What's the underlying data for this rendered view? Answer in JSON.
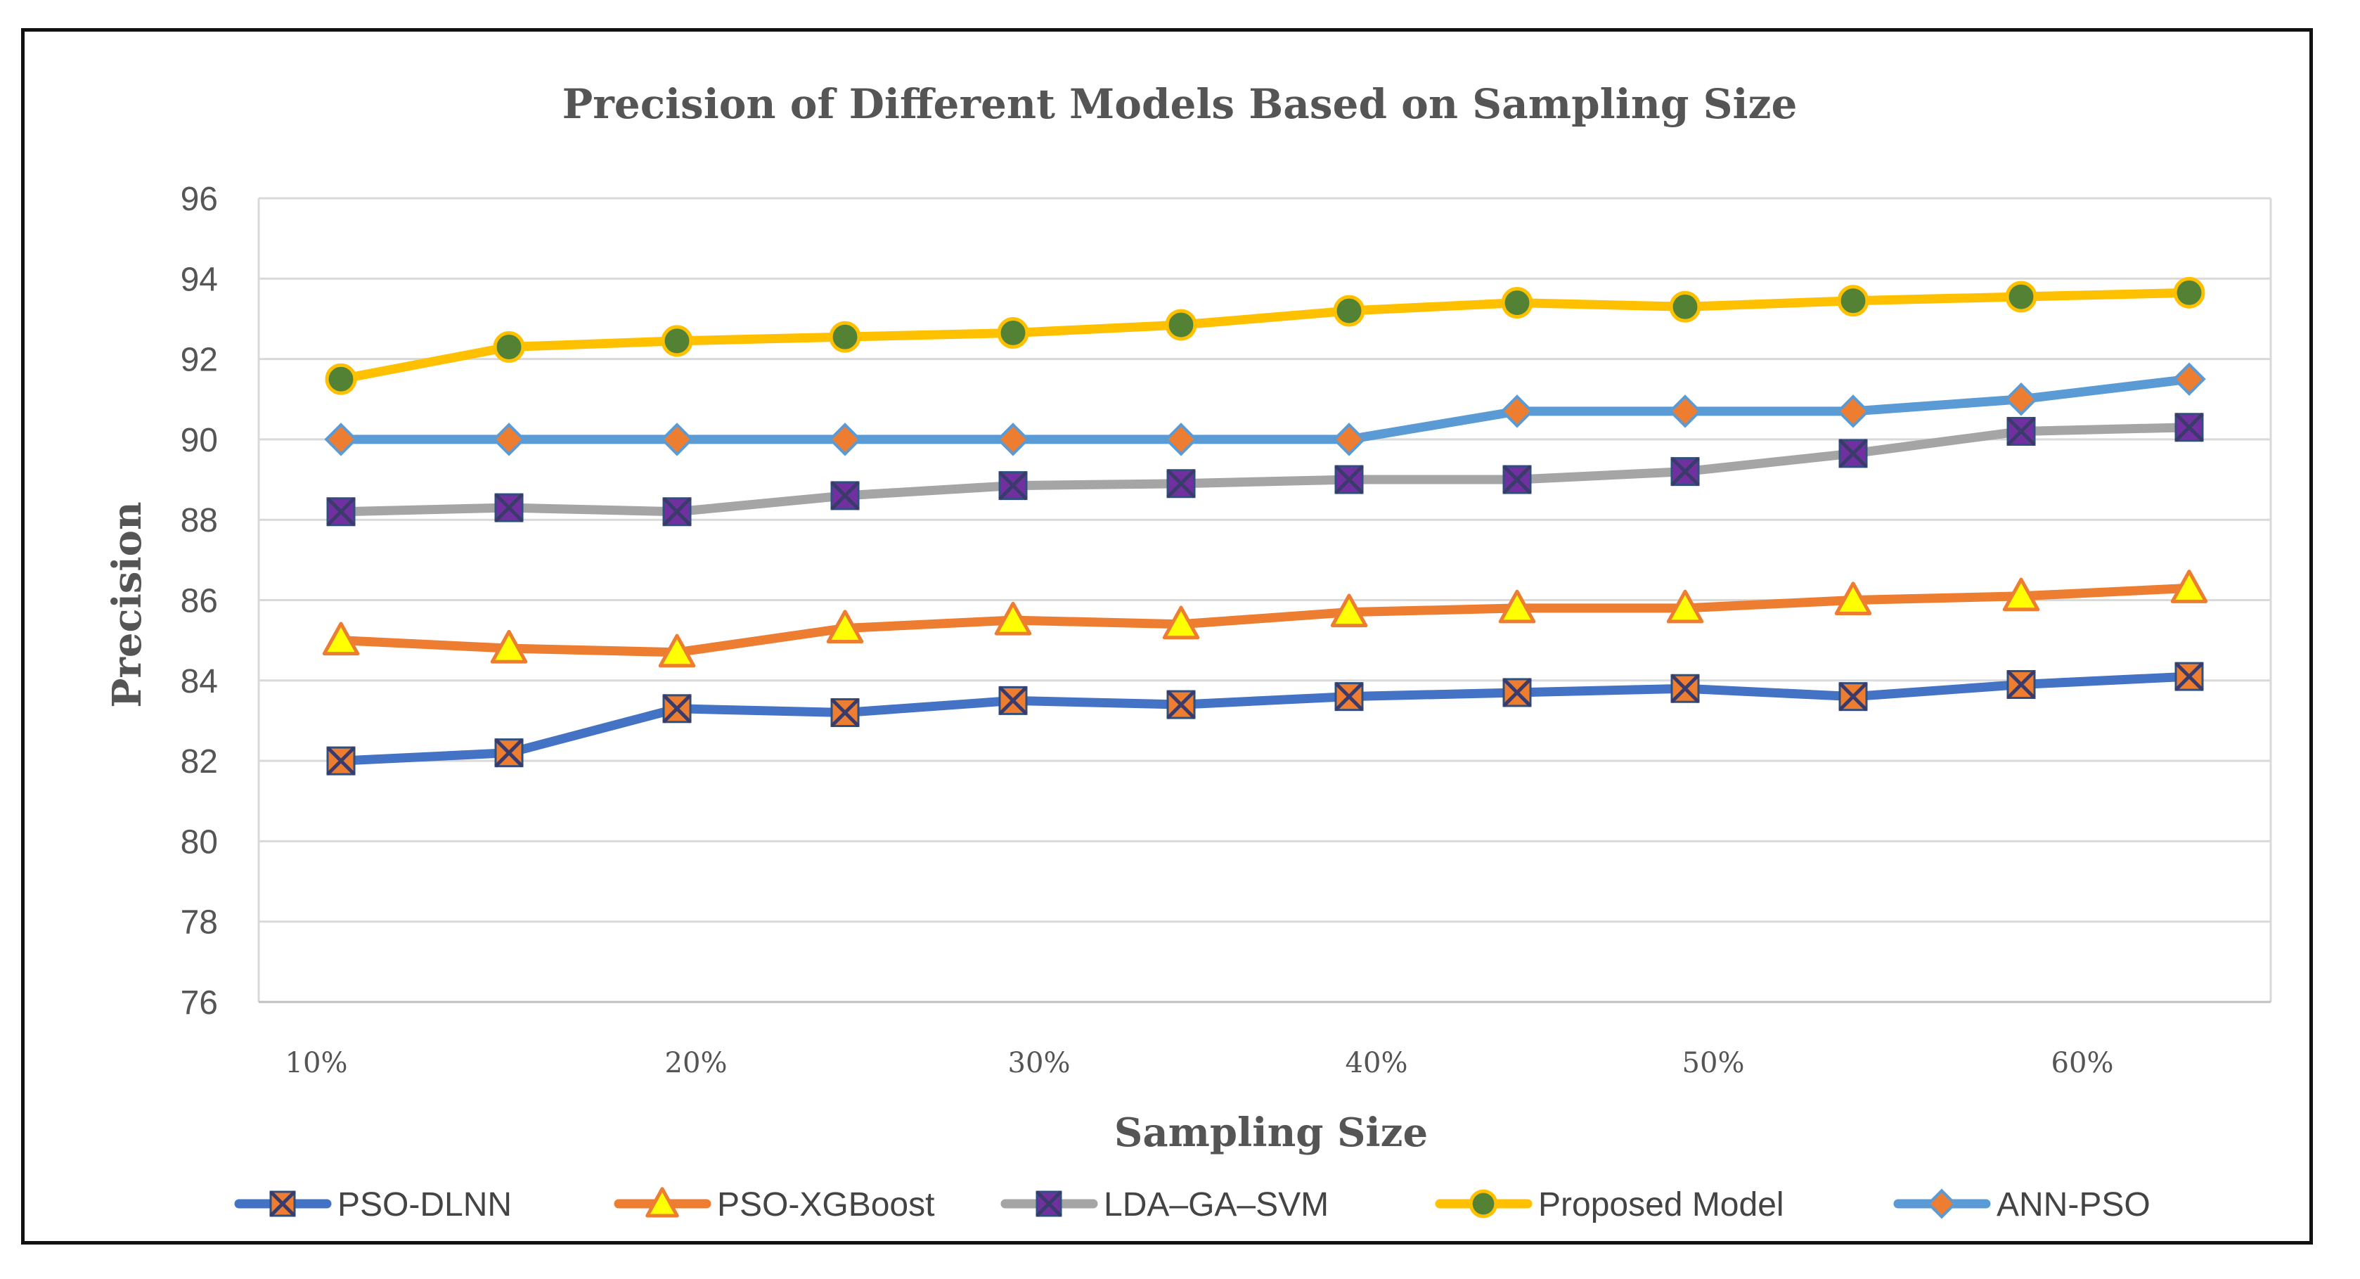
{
  "chart_data": {
    "type": "line",
    "title": "Precision of Different Models Based on Sampling Size",
    "xlabel": "Sampling Size",
    "ylabel": "Precision",
    "ylim": [
      76,
      96
    ],
    "ytick_step": 2,
    "x_tick_labels": [
      "10%",
      "20%",
      "30%",
      "40%",
      "50%",
      "60%"
    ],
    "point_count": 12,
    "grid": true,
    "legend_position": "bottom",
    "series": [
      {
        "name": "PSO-DLNN",
        "color": "#4472c4",
        "marker": "square-x",
        "marker_fill": "#ed7d31",
        "values": [
          82.0,
          82.2,
          83.3,
          83.2,
          83.5,
          83.4,
          83.6,
          83.7,
          83.8,
          83.6,
          83.9,
          84.1
        ]
      },
      {
        "name": "PSO-XGBoost",
        "color": "#ed7d31",
        "marker": "triangle",
        "marker_fill": "#ffff00",
        "values": [
          85.0,
          84.8,
          84.7,
          85.3,
          85.5,
          85.4,
          85.7,
          85.8,
          85.8,
          86.0,
          86.1,
          86.3
        ]
      },
      {
        "name": "LDA–GA–SVM",
        "color": "#a5a5a5",
        "marker": "square-x",
        "marker_fill": "#7030a0",
        "values": [
          88.2,
          88.3,
          88.2,
          88.6,
          88.85,
          88.9,
          89.0,
          89.0,
          89.2,
          89.65,
          90.2,
          90.3
        ]
      },
      {
        "name": "Proposed Model",
        "color": "#ffc000",
        "marker": "circle",
        "marker_fill": "#548235",
        "values": [
          91.5,
          92.3,
          92.45,
          92.55,
          92.65,
          92.85,
          93.2,
          93.4,
          93.3,
          93.45,
          93.55,
          93.65
        ]
      },
      {
        "name": "ANN-PSO",
        "color": "#5b9bd5",
        "marker": "diamond",
        "marker_fill": "#ed7d31",
        "values": [
          90.0,
          90.0,
          90.0,
          90.0,
          90.0,
          90.0,
          90.0,
          90.7,
          90.7,
          90.7,
          91.0,
          91.5
        ]
      }
    ]
  }
}
